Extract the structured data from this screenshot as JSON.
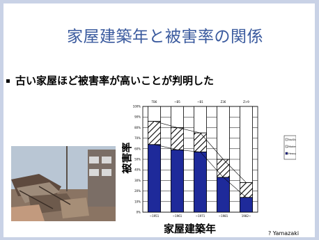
{
  "slide": {
    "title": "家屋建築年と被害率の関係",
    "bullet": "古い家屋ほど被害率が高いことが判明した",
    "credit": "? Yamazaki"
  },
  "chart_data": {
    "type": "bar",
    "stacked": true,
    "ylabel": "被害率",
    "xlabel": "家屋建築年",
    "ylim": [
      0,
      100
    ],
    "y_ticks": [
      "0%",
      "10%",
      "20%",
      "30%",
      "40%",
      "50%",
      "60%",
      "70%",
      "80%",
      "90%",
      "100%"
    ],
    "top_labels": [
      "TB6",
      "~B5",
      "~B1",
      "Z36",
      "Z>9"
    ],
    "categories": [
      "~1951",
      "~1961",
      "~1971",
      "~1981",
      "1982~"
    ],
    "series": [
      {
        "name": "Heavy",
        "color": "#1e2a9a",
        "pattern": "solid",
        "values": [
          64,
          59,
          57,
          33,
          14
        ]
      },
      {
        "name": "Moderate",
        "color": "#ffffff",
        "pattern": "hatch",
        "values": [
          22,
          21,
          18,
          17,
          14
        ]
      },
      {
        "name": "No/Slight",
        "color": "#ffffff",
        "pattern": "none",
        "values": [
          14,
          20,
          25,
          50,
          72
        ]
      }
    ],
    "legend_position": "right"
  }
}
